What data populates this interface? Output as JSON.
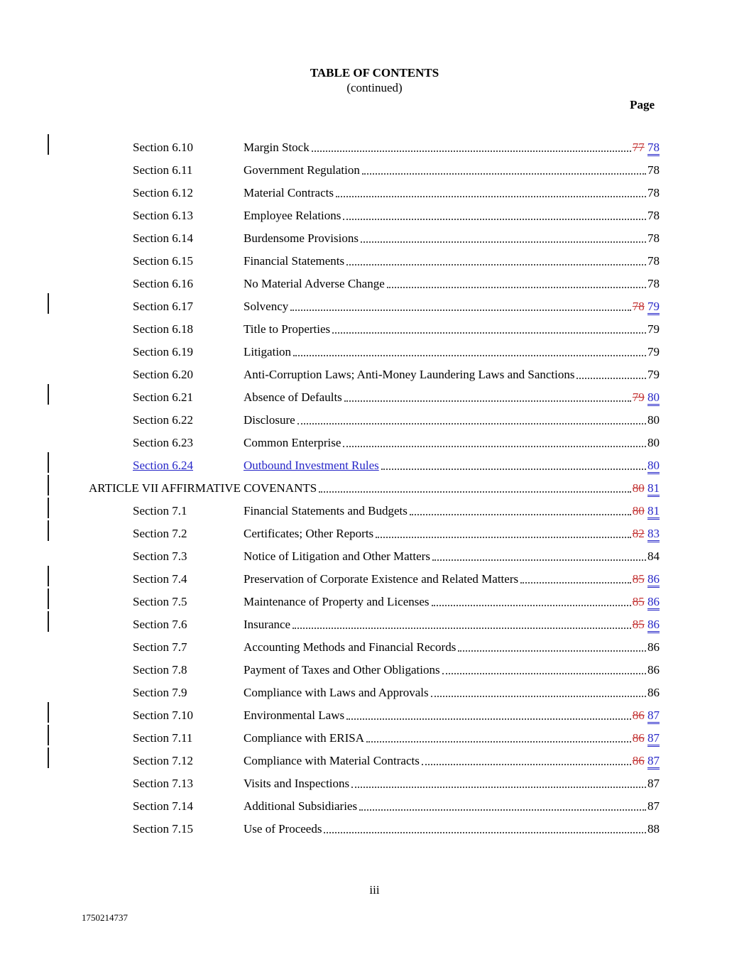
{
  "header": {
    "title": "TABLE OF CONTENTS",
    "subtitle": "(continued)",
    "page_label": "Page"
  },
  "colors": {
    "inserted_text": "#2626c8",
    "deleted_text": "#c43636",
    "body_text": "#000000",
    "change_bar": "#1a1a1a"
  },
  "toc": {
    "rows": [
      {
        "kind": "section",
        "num": "Section 6.10",
        "title": "Margin Stock",
        "old_page": "77",
        "new_page": "78",
        "changed": true
      },
      {
        "kind": "section",
        "num": "Section 6.11",
        "title": "Government Regulation",
        "page": "78"
      },
      {
        "kind": "section",
        "num": "Section 6.12",
        "title": "Material Contracts",
        "page": "78"
      },
      {
        "kind": "section",
        "num": "Section 6.13",
        "title": "Employee Relations",
        "page": "78"
      },
      {
        "kind": "section",
        "num": "Section 6.14",
        "title": "Burdensome Provisions",
        "page": "78"
      },
      {
        "kind": "section",
        "num": "Section 6.15",
        "title": "Financial Statements",
        "page": "78"
      },
      {
        "kind": "section",
        "num": "Section 6.16",
        "title": "No Material Adverse Change",
        "page": "78"
      },
      {
        "kind": "section",
        "num": "Section 6.17",
        "title": "Solvency",
        "old_page": "78",
        "new_page": "79",
        "changed": true
      },
      {
        "kind": "section",
        "num": "Section 6.18",
        "title": "Title to Properties",
        "page": "79"
      },
      {
        "kind": "section",
        "num": "Section 6.19",
        "title": "Litigation",
        "page": "79"
      },
      {
        "kind": "section",
        "num": "Section 6.20",
        "title": "Anti-Corruption Laws; Anti-Money Laundering Laws and Sanctions",
        "page": "79"
      },
      {
        "kind": "section",
        "num": "Section 6.21",
        "title": "Absence of Defaults",
        "old_page": "79",
        "new_page": "80",
        "changed": true
      },
      {
        "kind": "section",
        "num": "Section 6.22",
        "title": "Disclosure",
        "page": "80"
      },
      {
        "kind": "section",
        "num": "Section 6.23",
        "title": "Common Enterprise",
        "page": "80"
      },
      {
        "kind": "section",
        "num": "Section 6.24",
        "title": "Outbound Investment Rules",
        "new_page": "80",
        "inserted": true,
        "changed": true
      },
      {
        "kind": "article",
        "title": "ARTICLE VII AFFIRMATIVE COVENANTS",
        "old_page": "80",
        "new_page": "81",
        "changed": true
      },
      {
        "kind": "section",
        "num": "Section 7.1",
        "title": "Financial Statements and Budgets",
        "old_page": "80",
        "new_page": "81",
        "changed": true
      },
      {
        "kind": "section",
        "num": "Section 7.2",
        "title": "Certificates; Other Reports",
        "old_page": "82",
        "new_page": "83",
        "changed": true
      },
      {
        "kind": "section",
        "num": "Section 7.3",
        "title": "Notice of Litigation and Other Matters",
        "page": "84"
      },
      {
        "kind": "section",
        "num": "Section 7.4",
        "title": "Preservation of Corporate Existence and Related Matters",
        "old_page": "85",
        "new_page": "86",
        "changed": true
      },
      {
        "kind": "section",
        "num": "Section 7.5",
        "title": "Maintenance of Property and Licenses",
        "old_page": "85",
        "new_page": "86",
        "changed": true
      },
      {
        "kind": "section",
        "num": "Section 7.6",
        "title": "Insurance",
        "old_page": "85",
        "new_page": "86",
        "changed": true
      },
      {
        "kind": "section",
        "num": "Section 7.7",
        "title": "Accounting Methods and Financial Records",
        "page": "86"
      },
      {
        "kind": "section",
        "num": "Section 7.8",
        "title": "Payment of Taxes and Other Obligations",
        "page": "86"
      },
      {
        "kind": "section",
        "num": "Section 7.9",
        "title": "Compliance with Laws and Approvals",
        "page": "86"
      },
      {
        "kind": "section",
        "num": "Section 7.10",
        "title": "Environmental Laws",
        "old_page": "86",
        "new_page": "87",
        "changed": true
      },
      {
        "kind": "section",
        "num": "Section 7.11",
        "title": "Compliance with ERISA",
        "old_page": "86",
        "new_page": "87",
        "changed": true
      },
      {
        "kind": "section",
        "num": "Section 7.12",
        "title": "Compliance with Material Contracts",
        "old_page": "86",
        "new_page": "87",
        "changed": true
      },
      {
        "kind": "section",
        "num": "Section 7.13",
        "title": "Visits and Inspections",
        "page": "87"
      },
      {
        "kind": "section",
        "num": "Section 7.14",
        "title": "Additional Subsidiaries",
        "page": "87"
      },
      {
        "kind": "section",
        "num": "Section 7.15",
        "title": "Use of Proceeds",
        "page": "88"
      }
    ]
  },
  "footer": {
    "page_marker": "iii",
    "doc_id": "1750214737"
  }
}
